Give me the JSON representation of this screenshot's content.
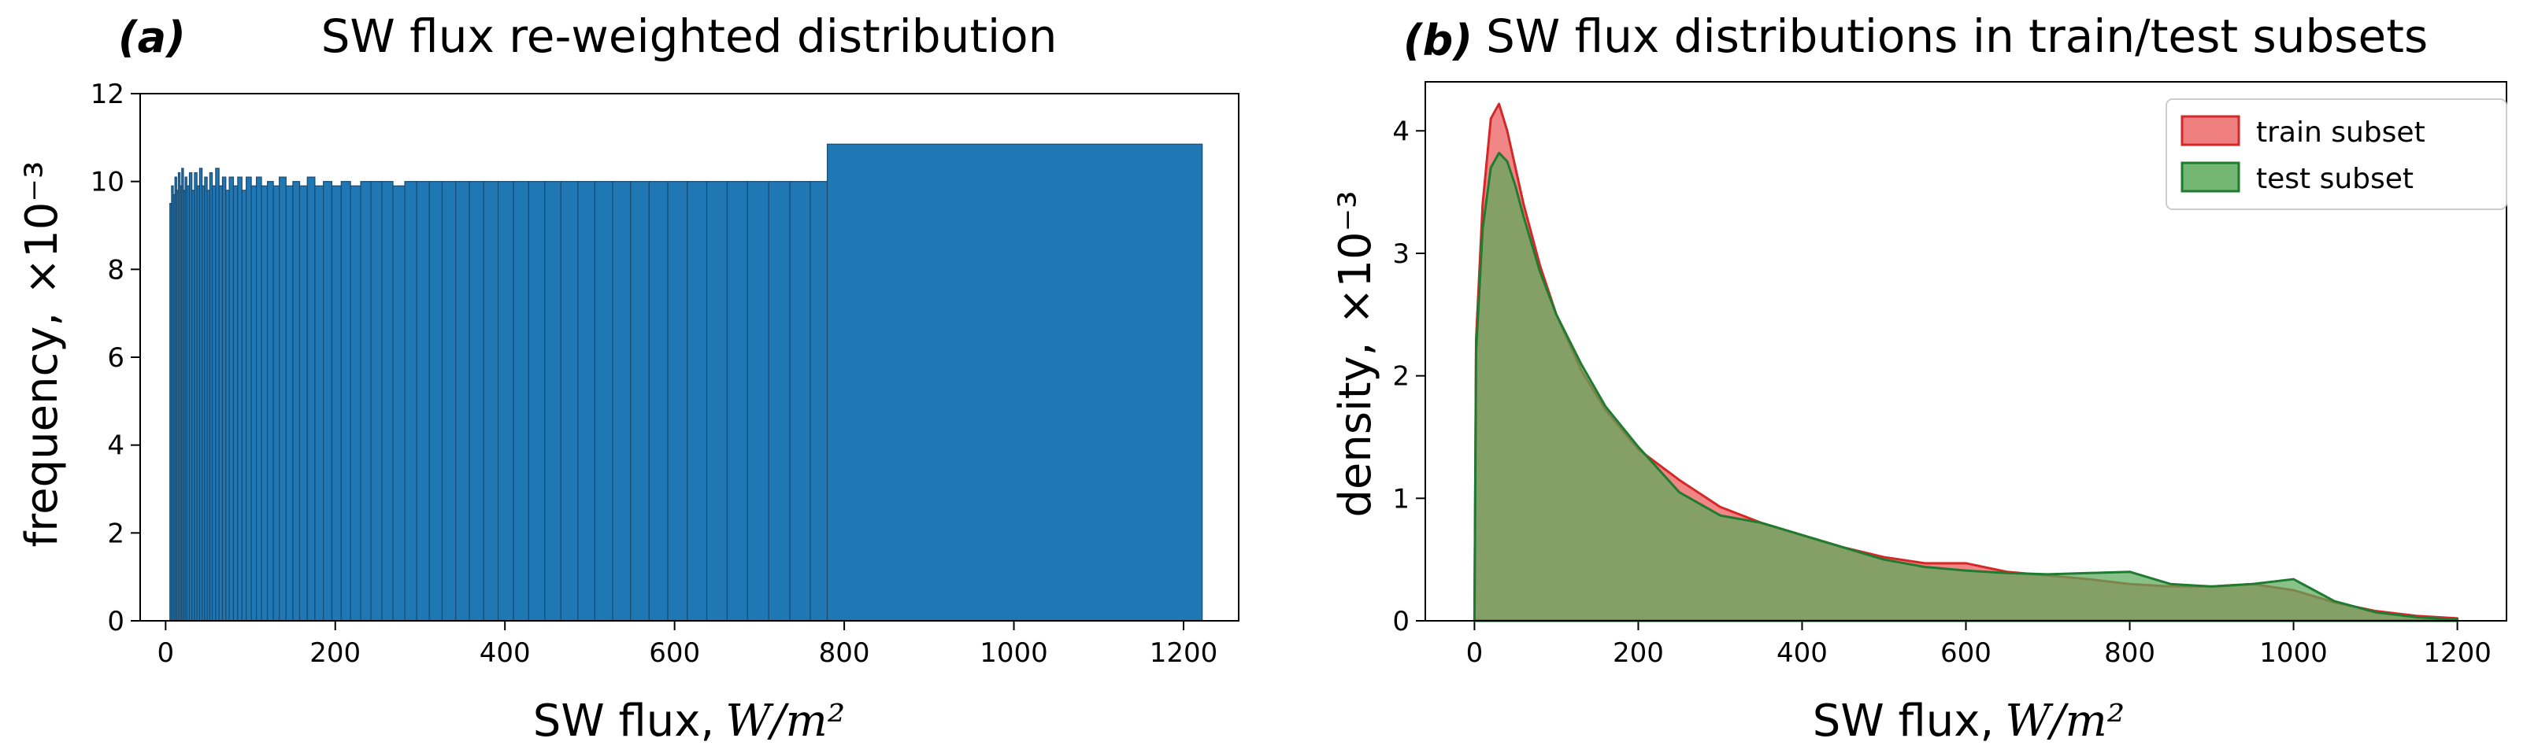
{
  "chart_data": [
    {
      "type": "bar",
      "panel_label": "(a)",
      "title": "SW flux re-weighted distribution",
      "xlabel": "SW flux,",
      "xlabel_unit": "W/m²",
      "ylabel": "frequency,",
      "ylabel_scale": "×10⁻³",
      "xlim": [
        -30,
        1265
      ],
      "ylim": [
        0,
        12
      ],
      "xticks": [
        0,
        200,
        400,
        600,
        800,
        1000,
        1200
      ],
      "yticks": [
        0,
        2,
        4,
        6,
        8,
        10,
        12
      ],
      "color": "#1f77b4",
      "edge_color": "#1a4a70",
      "bins": [
        {
          "x0": 5,
          "x1": 7,
          "h": 9.5
        },
        {
          "x0": 7,
          "x1": 9,
          "h": 9.9
        },
        {
          "x0": 9,
          "x1": 11,
          "h": 9.7
        },
        {
          "x0": 11,
          "x1": 13,
          "h": 10.1
        },
        {
          "x0": 13,
          "x1": 15,
          "h": 9.8
        },
        {
          "x0": 15,
          "x1": 17,
          "h": 10.2
        },
        {
          "x0": 17,
          "x1": 19,
          "h": 9.9
        },
        {
          "x0": 19,
          "x1": 21,
          "h": 10.3
        },
        {
          "x0": 21,
          "x1": 23,
          "h": 9.8
        },
        {
          "x0": 23,
          "x1": 25,
          "h": 10.1
        },
        {
          "x0": 25,
          "x1": 28,
          "h": 9.9
        },
        {
          "x0": 28,
          "x1": 31,
          "h": 10.2
        },
        {
          "x0": 31,
          "x1": 34,
          "h": 9.8
        },
        {
          "x0": 34,
          "x1": 37,
          "h": 10.2
        },
        {
          "x0": 37,
          "x1": 40,
          "h": 9.9
        },
        {
          "x0": 40,
          "x1": 43,
          "h": 10.3
        },
        {
          "x0": 43,
          "x1": 46,
          "h": 9.9
        },
        {
          "x0": 46,
          "x1": 49,
          "h": 10.1
        },
        {
          "x0": 49,
          "x1": 52,
          "h": 9.8
        },
        {
          "x0": 52,
          "x1": 55,
          "h": 10.2
        },
        {
          "x0": 55,
          "x1": 59,
          "h": 9.9
        },
        {
          "x0": 59,
          "x1": 63,
          "h": 10.3
        },
        {
          "x0": 63,
          "x1": 67,
          "h": 9.9
        },
        {
          "x0": 67,
          "x1": 71,
          "h": 10.1
        },
        {
          "x0": 71,
          "x1": 75,
          "h": 9.8
        },
        {
          "x0": 75,
          "x1": 80,
          "h": 10.1
        },
        {
          "x0": 80,
          "x1": 85,
          "h": 9.9
        },
        {
          "x0": 85,
          "x1": 90,
          "h": 10.1
        },
        {
          "x0": 90,
          "x1": 95,
          "h": 9.8
        },
        {
          "x0": 95,
          "x1": 101,
          "h": 10.1
        },
        {
          "x0": 101,
          "x1": 107,
          "h": 9.9
        },
        {
          "x0": 107,
          "x1": 113,
          "h": 10.1
        },
        {
          "x0": 113,
          "x1": 120,
          "h": 9.9
        },
        {
          "x0": 120,
          "x1": 127,
          "h": 10.0
        },
        {
          "x0": 127,
          "x1": 134,
          "h": 9.9
        },
        {
          "x0": 134,
          "x1": 142,
          "h": 10.1
        },
        {
          "x0": 142,
          "x1": 150,
          "h": 9.9
        },
        {
          "x0": 150,
          "x1": 158,
          "h": 10.0
        },
        {
          "x0": 158,
          "x1": 167,
          "h": 9.9
        },
        {
          "x0": 167,
          "x1": 176,
          "h": 10.1
        },
        {
          "x0": 176,
          "x1": 186,
          "h": 9.9
        },
        {
          "x0": 186,
          "x1": 196,
          "h": 10.0
        },
        {
          "x0": 196,
          "x1": 207,
          "h": 9.9
        },
        {
          "x0": 207,
          "x1": 218,
          "h": 10.0
        },
        {
          "x0": 218,
          "x1": 230,
          "h": 9.9
        },
        {
          "x0": 230,
          "x1": 242,
          "h": 10.0
        },
        {
          "x0": 242,
          "x1": 255,
          "h": 10.0
        },
        {
          "x0": 255,
          "x1": 268,
          "h": 10.0
        },
        {
          "x0": 268,
          "x1": 282,
          "h": 9.9
        },
        {
          "x0": 282,
          "x1": 296,
          "h": 10.0
        },
        {
          "x0": 296,
          "x1": 311,
          "h": 10.0
        },
        {
          "x0": 311,
          "x1": 326,
          "h": 10.0
        },
        {
          "x0": 326,
          "x1": 342,
          "h": 10.0
        },
        {
          "x0": 342,
          "x1": 358,
          "h": 10.0
        },
        {
          "x0": 358,
          "x1": 375,
          "h": 10.0
        },
        {
          "x0": 375,
          "x1": 392,
          "h": 10.0
        },
        {
          "x0": 392,
          "x1": 410,
          "h": 10.0
        },
        {
          "x0": 410,
          "x1": 428,
          "h": 10.0
        },
        {
          "x0": 428,
          "x1": 447,
          "h": 10.0
        },
        {
          "x0": 447,
          "x1": 466,
          "h": 10.0
        },
        {
          "x0": 466,
          "x1": 486,
          "h": 10.0
        },
        {
          "x0": 486,
          "x1": 506,
          "h": 10.0
        },
        {
          "x0": 506,
          "x1": 527,
          "h": 10.0
        },
        {
          "x0": 527,
          "x1": 548,
          "h": 10.0
        },
        {
          "x0": 548,
          "x1": 570,
          "h": 10.0
        },
        {
          "x0": 570,
          "x1": 592,
          "h": 10.0
        },
        {
          "x0": 592,
          "x1": 615,
          "h": 10.0
        },
        {
          "x0": 615,
          "x1": 638,
          "h": 10.0
        },
        {
          "x0": 638,
          "x1": 662,
          "h": 10.0
        },
        {
          "x0": 662,
          "x1": 686,
          "h": 10.0
        },
        {
          "x0": 686,
          "x1": 711,
          "h": 10.0
        },
        {
          "x0": 711,
          "x1": 736,
          "h": 10.0
        },
        {
          "x0": 736,
          "x1": 760,
          "h": 10.0
        },
        {
          "x0": 760,
          "x1": 780,
          "h": 10.0
        },
        {
          "x0": 780,
          "x1": 1222,
          "h": 10.85
        }
      ]
    },
    {
      "type": "area",
      "panel_label": "(b)",
      "title": "SW flux distributions in train/test subsets",
      "xlabel": "SW flux,",
      "xlabel_unit": "W/m²",
      "ylabel": "density,",
      "ylabel_scale": "×10⁻³",
      "xlim": [
        -60,
        1260
      ],
      "ylim": [
        0,
        4.4
      ],
      "xticks": [
        0,
        200,
        400,
        600,
        800,
        1000,
        1200
      ],
      "yticks": [
        0,
        1,
        2,
        3,
        4
      ],
      "legend": "top-right",
      "series": [
        {
          "name": "train subset",
          "fill": "#f08080",
          "line": "#d62728",
          "x": [
            0,
            2,
            10,
            20,
            30,
            40,
            50,
            60,
            80,
            100,
            130,
            160,
            200,
            250,
            300,
            350,
            400,
            450,
            500,
            550,
            600,
            650,
            700,
            750,
            800,
            850,
            900,
            950,
            1000,
            1050,
            1100,
            1150,
            1200
          ],
          "y": [
            0,
            2.3,
            3.4,
            4.1,
            4.22,
            4.0,
            3.7,
            3.4,
            2.9,
            2.5,
            2.05,
            1.72,
            1.4,
            1.15,
            0.93,
            0.8,
            0.7,
            0.6,
            0.52,
            0.47,
            0.47,
            0.4,
            0.37,
            0.34,
            0.3,
            0.28,
            0.28,
            0.3,
            0.25,
            0.15,
            0.08,
            0.04,
            0.02
          ]
        },
        {
          "name": "test subset",
          "fill": "#5aaa5a",
          "line": "#1e7b30",
          "x": [
            0,
            2,
            10,
            20,
            30,
            40,
            50,
            60,
            80,
            100,
            130,
            160,
            200,
            250,
            300,
            350,
            400,
            450,
            500,
            550,
            600,
            650,
            700,
            750,
            800,
            850,
            900,
            950,
            1000,
            1050,
            1100,
            1150,
            1200
          ],
          "y": [
            0,
            2.2,
            3.2,
            3.7,
            3.82,
            3.75,
            3.55,
            3.3,
            2.85,
            2.5,
            2.1,
            1.75,
            1.42,
            1.05,
            0.86,
            0.8,
            0.7,
            0.6,
            0.5,
            0.44,
            0.41,
            0.39,
            0.38,
            0.39,
            0.4,
            0.3,
            0.28,
            0.3,
            0.34,
            0.16,
            0.07,
            0.03,
            0.01
          ]
        }
      ]
    }
  ]
}
